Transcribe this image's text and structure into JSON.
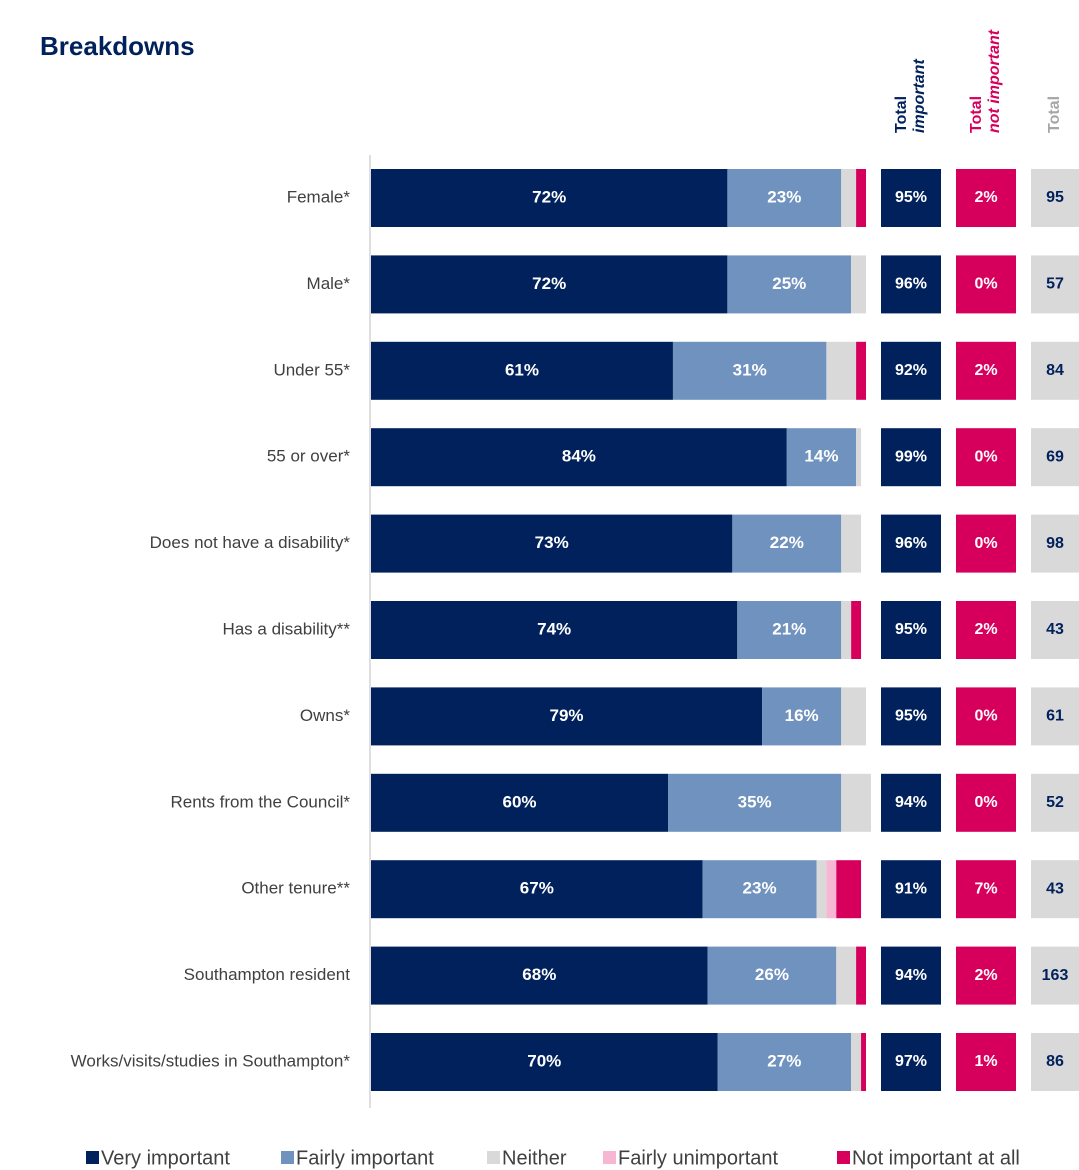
{
  "chart_data": {
    "type": "bar",
    "orientation": "horizontal",
    "stacked": true,
    "title": "Breakdowns",
    "categories": [
      "Female*",
      "Male*",
      "Under 55*",
      "55 or over*",
      "Does not have a disability*",
      "Has a disability**",
      "Owns*",
      "Rents from the Council*",
      "Other tenure**",
      "Southampton resident",
      "Works/visits/studies in Southampton*"
    ],
    "xlim": [
      0,
      100
    ],
    "series": [
      {
        "name": "Very important",
        "color": "#00215b",
        "values": [
          72,
          72,
          61,
          84,
          73,
          74,
          79,
          60,
          67,
          68,
          70
        ],
        "value_labels": [
          "72%",
          "72%",
          "61%",
          "84%",
          "73%",
          "74%",
          "79%",
          "60%",
          "67%",
          "68%",
          "70%"
        ]
      },
      {
        "name": "Fairly important",
        "color": "#7092be",
        "values": [
          23,
          25,
          31,
          14,
          22,
          21,
          16,
          35,
          23,
          26,
          27
        ],
        "value_labels": [
          "23%",
          "25%",
          "31%",
          "14%",
          "22%",
          "21%",
          "16%",
          "35%",
          "23%",
          "26%",
          "27%"
        ]
      },
      {
        "name": "Neither",
        "color": "#d9d9d9",
        "values": [
          3,
          3,
          6,
          1,
          4,
          2,
          5,
          6,
          2,
          4,
          2
        ]
      },
      {
        "name": "Fairly unimportant",
        "color": "#f7b7d2",
        "values": [
          0,
          0,
          0,
          0,
          0,
          0,
          0,
          0,
          2,
          0,
          0
        ]
      },
      {
        "name": "Not important at all",
        "color": "#d6005c",
        "values": [
          2,
          0,
          2,
          0,
          0,
          2,
          0,
          0,
          5,
          2,
          1
        ]
      }
    ],
    "summary_columns": [
      {
        "header": [
          "Total",
          "important"
        ],
        "color": "#00215b",
        "header_color": "#00215b",
        "text_color": "#ffffff",
        "values": [
          95,
          96,
          92,
          99,
          96,
          95,
          95,
          94,
          91,
          94,
          97
        ],
        "value_labels": [
          "95%",
          "96%",
          "92%",
          "99%",
          "96%",
          "95%",
          "95%",
          "94%",
          "91%",
          "94%",
          "97%"
        ]
      },
      {
        "header": [
          "Total",
          "not important"
        ],
        "color": "#d6005c",
        "header_color": "#d6005c",
        "text_color": "#ffffff",
        "values": [
          2,
          0,
          2,
          0,
          0,
          2,
          0,
          0,
          7,
          2,
          1
        ],
        "value_labels": [
          "2%",
          "0%",
          "2%",
          "0%",
          "0%",
          "2%",
          "0%",
          "0%",
          "7%",
          "2%",
          "1%"
        ]
      },
      {
        "header": [
          "Total"
        ],
        "color": "#d9d9d9",
        "header_color": "#a6a6a6",
        "text_color": "#00215b",
        "values": [
          95,
          57,
          84,
          69,
          98,
          43,
          61,
          52,
          43,
          163,
          86
        ]
      }
    ]
  }
}
